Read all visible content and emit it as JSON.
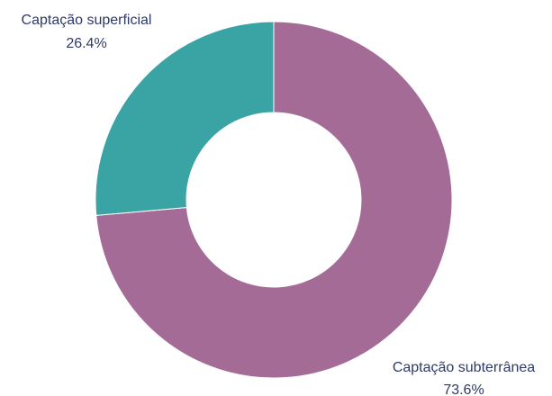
{
  "chart_data": {
    "type": "pie",
    "style": "donut",
    "title": "",
    "slices": [
      {
        "label": "Captação subterrânea",
        "value": 73.6,
        "value_label": "73.6%",
        "color": "#a36b96"
      },
      {
        "label": "Captação superficial",
        "value": 26.4,
        "value_label": "26.4%",
        "color": "#3aa3a3"
      }
    ],
    "start_angle": "12 o'clock",
    "direction": "clockwise",
    "legend": "none"
  }
}
